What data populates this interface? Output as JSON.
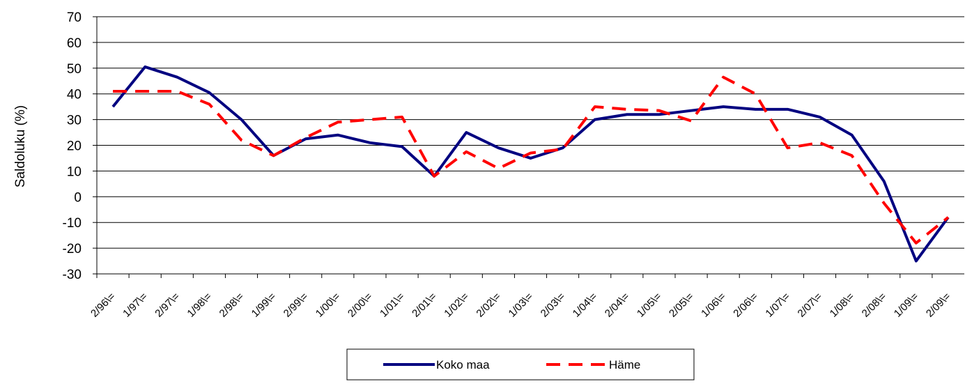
{
  "chart_data": {
    "type": "line",
    "y_label": "Saldoluku (%)",
    "categories": [
      "2/96\\=",
      "1/97\\=",
      "2/97\\=",
      "1/98\\=",
      "2/98\\=",
      "1/99\\=",
      "2/99\\=",
      "1/00\\=",
      "2/00\\=",
      "1/01\\=",
      "2/01\\=",
      "1/02\\=",
      "2/02\\=",
      "1/03\\=",
      "2/03\\=",
      "1/04\\=",
      "2/04\\=",
      "1/05\\=",
      "2/05\\=",
      "1/06\\=",
      "2/06\\=",
      "1/07\\=",
      "2/07\\=",
      "1/08\\=",
      "2/08\\=",
      "1/09\\=",
      "2/09\\="
    ],
    "series": [
      {
        "name": "Koko maa",
        "color": "#000080",
        "dash": false,
        "values": [
          35,
          50.5,
          46.5,
          40.5,
          30,
          16,
          22.5,
          24,
          21,
          19.5,
          8,
          25,
          19,
          15,
          19,
          30,
          32,
          32,
          33.5,
          35,
          34,
          34,
          31,
          24,
          6,
          -25,
          -8
        ]
      },
      {
        "name": "Häme",
        "color": "#ff0000",
        "dash": true,
        "values": [
          41,
          41,
          41,
          36,
          22,
          16,
          23,
          29,
          30,
          31,
          8,
          17.5,
          11,
          17,
          18.5,
          35,
          34,
          33.5,
          29.5,
          46.5,
          40,
          19,
          21,
          16,
          -2.5,
          -18,
          -8
        ]
      }
    ],
    "ylim": [
      -30,
      70
    ],
    "yticks": [
      -30,
      -20,
      -10,
      0,
      10,
      20,
      30,
      40,
      50,
      60,
      70
    ],
    "grid": true
  }
}
